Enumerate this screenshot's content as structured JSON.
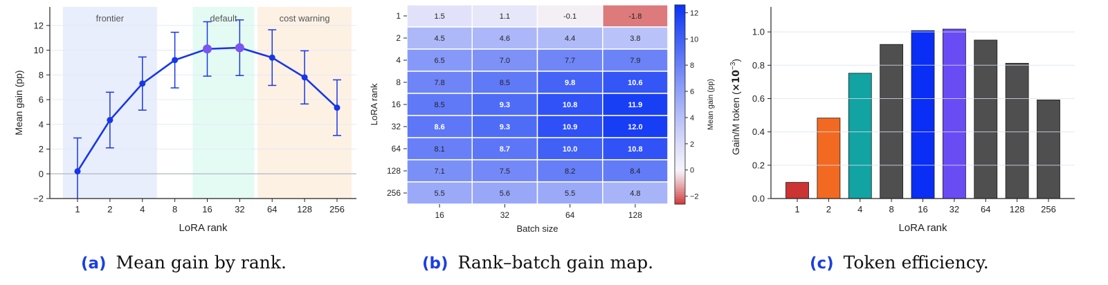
{
  "panels": {
    "a": {
      "tag": "(a)",
      "caption": "Mean gain by rank.",
      "xlabel": "LoRA rank",
      "ylabel": "Mean gain (pp)",
      "bands": [
        {
          "label": "frontier",
          "from": 0,
          "to": 2,
          "color": "#e8eefc"
        },
        {
          "label": "default",
          "from": 4,
          "to": 5,
          "color": "#e4fbf3"
        },
        {
          "label": "cost warning",
          "from": 6,
          "to": 8,
          "color": "#fdf1e4"
        }
      ]
    },
    "b": {
      "tag": "(b)",
      "caption": "Rank–batch gain map.",
      "xlabel": "Batch size",
      "ylabel": "LoRA rank",
      "colorbar_label": "Mean gain (pp)"
    },
    "c": {
      "tag": "(c)",
      "caption": "Token efficiency.",
      "xlabel": "LoRA rank",
      "ylabel_main": "Gain/M token (",
      "ylabel_math": "×10",
      "ylabel_exp": "−3",
      "ylabel_close": ")"
    }
  },
  "chart_data": [
    {
      "id": "a",
      "type": "line",
      "categories": [
        "1",
        "2",
        "4",
        "8",
        "16",
        "32",
        "64",
        "128",
        "256"
      ],
      "values": [
        0.2,
        4.35,
        7.3,
        9.2,
        10.1,
        10.2,
        9.4,
        7.8,
        5.35
      ],
      "errors": [
        2.7,
        2.25,
        2.15,
        2.25,
        2.2,
        2.25,
        2.25,
        2.15,
        2.25
      ],
      "highlight_indices": [
        4,
        5
      ],
      "ylim": [
        -2,
        13.5
      ],
      "yticks": [
        -2,
        0,
        2,
        4,
        6,
        8,
        10,
        12
      ],
      "ytick_labels": [
        "−2",
        "0",
        "2",
        "4",
        "6",
        "8",
        "10",
        "12"
      ],
      "line_color": "#1736e8",
      "highlight_color": "#7b55f0",
      "grid": "horizontal"
    },
    {
      "id": "b",
      "type": "heatmap",
      "x_categories": [
        "16",
        "32",
        "64",
        "128"
      ],
      "y_categories": [
        "1",
        "2",
        "4",
        "8",
        "16",
        "32",
        "64",
        "128",
        "256"
      ],
      "values": [
        [
          1.5,
          1.1,
          -0.1,
          -1.8
        ],
        [
          4.5,
          4.6,
          4.4,
          3.8
        ],
        [
          6.5,
          7.0,
          7.7,
          7.9
        ],
        [
          7.8,
          8.5,
          9.8,
          10.6
        ],
        [
          8.5,
          9.3,
          10.8,
          11.9
        ],
        [
          8.6,
          9.3,
          10.9,
          12.0
        ],
        [
          8.1,
          8.7,
          10.0,
          10.8
        ],
        [
          7.1,
          7.5,
          8.2,
          8.4
        ],
        [
          5.5,
          5.6,
          5.5,
          4.8
        ]
      ],
      "labels": [
        [
          "1.5",
          "1.1",
          "-0.1",
          "-1.8"
        ],
        [
          "4.5",
          "4.6",
          "4.4",
          "3.8"
        ],
        [
          "6.5",
          "7.0",
          "7.7",
          "7.9"
        ],
        [
          "7.8",
          "8.5",
          "9.8",
          "10.6"
        ],
        [
          "8.5",
          "9.3",
          "10.8",
          "11.9"
        ],
        [
          "8.6",
          "9.3",
          "10.9",
          "12.0"
        ],
        [
          "8.1",
          "8.7",
          "10.0",
          "10.8"
        ],
        [
          "7.1",
          "7.5",
          "8.2",
          "8.4"
        ],
        [
          "5.5",
          "5.6",
          "5.5",
          "4.8"
        ]
      ],
      "colorbar_range": [
        -2.6,
        12.6
      ],
      "colorbar_ticks": [
        -2,
        0,
        2,
        4,
        6,
        8,
        10,
        12
      ],
      "colorbar_tick_labels": [
        "−2",
        "0",
        "2",
        "4",
        "6",
        "8",
        "10",
        "12"
      ],
      "colormap": {
        "low": "#d03a3a",
        "mid": "#f5f3fa",
        "high": "#0a33f5"
      }
    },
    {
      "id": "c",
      "type": "bar",
      "categories": [
        "1",
        "2",
        "4",
        "8",
        "16",
        "32",
        "64",
        "128",
        "256"
      ],
      "values": [
        0.097,
        0.483,
        0.752,
        0.925,
        1.008,
        1.017,
        0.951,
        0.812,
        0.592
      ],
      "colors": [
        "#cc3333",
        "#f26a22",
        "#12a3a3",
        "#4f4f4f",
        "#0a2ef5",
        "#6a4cf5",
        "#4f4f4f",
        "#4f4f4f",
        "#4f4f4f"
      ],
      "ylim": [
        0,
        1.15
      ],
      "yticks": [
        0,
        0.2,
        0.4,
        0.6,
        0.8,
        1.0
      ],
      "ytick_labels": [
        "0.0",
        "0.2",
        "0.4",
        "0.6",
        "0.8",
        "1.0"
      ],
      "grid": "horizontal"
    }
  ]
}
